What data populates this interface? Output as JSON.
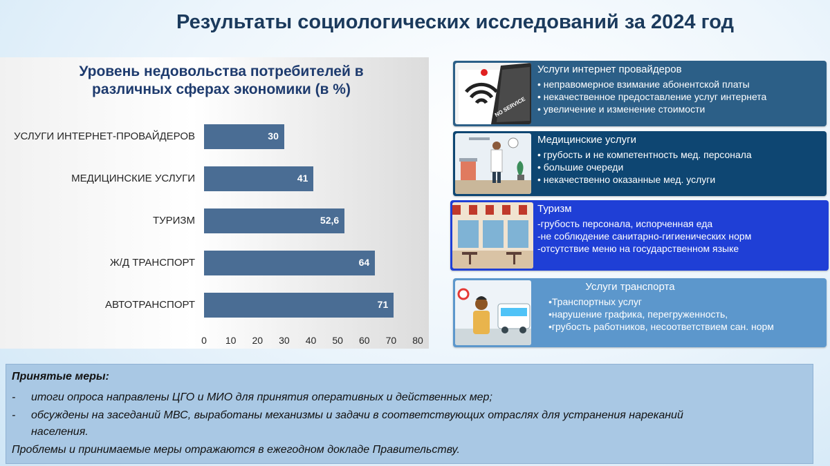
{
  "page": {
    "title": "Результаты социологических исследований за 2024 год"
  },
  "chart_data": {
    "type": "bar",
    "orientation": "horizontal",
    "title": "Уровень недовольства потребителей в различных сферах экономики (в %)",
    "categories": [
      "УСЛУГИ ИНТЕРНЕТ-ПРОВАЙДЕРОВ",
      "МЕДИЦИНСКИЕ УСЛУГИ",
      "ТУРИЗМ",
      "Ж/Д ТРАНСПОРТ",
      "АВТОТРАНСПОРТ"
    ],
    "values": [
      30,
      41,
      52.6,
      64,
      71
    ],
    "value_labels": [
      "30",
      "41",
      "52,6",
      "64",
      "71"
    ],
    "xlim": [
      0,
      80
    ],
    "x_ticks": [
      "0",
      "10",
      "20",
      "30",
      "40",
      "50",
      "60",
      "70",
      "80"
    ],
    "bar_color": "#4a6d94",
    "grid": false
  },
  "cards": [
    {
      "heading": "Услуги интернет провайдеров",
      "items": [
        "• неправомерное взимание абонентской платы",
        "• некачественное предоставление услуг интернета",
        "• увеличение и изменение стоимости"
      ],
      "image_text": "NO SERVICE"
    },
    {
      "heading": "Медицинские услуги",
      "items": [
        "• грубость и не компетентность мед. персонала",
        "• большие очереди",
        "• некачественно оказанные мед. услуги"
      ]
    },
    {
      "heading": "Туризм",
      "items": [
        "-грубость персонала, испорченная еда",
        "-не соблюдение санитарно-гигиенических норм",
        "-отсутствие меню на государственном языке"
      ]
    },
    {
      "heading": "Услуги транспорта",
      "items": [
        "•Транспортных услуг",
        "•нарушение графика, перегруженность,",
        "•грубость работников, несоответствием сан. норм"
      ]
    }
  ],
  "measures": {
    "title": "Принятые меры:",
    "items": [
      {
        "dash": "-",
        "line1": "итоги опроса направлены ЦГО и МИО для принятия оперативных и действенных мер;",
        "line2": ""
      },
      {
        "dash": "-",
        "line1": "обсуждены на заседаний МВС, выработаны механизмы и задачи в соответствующих отраслях для устранения нареканий",
        "line2": "населения."
      }
    ],
    "footer": "Проблемы и принимаемые меры отражаются в ежегодном докладе Правительству."
  }
}
